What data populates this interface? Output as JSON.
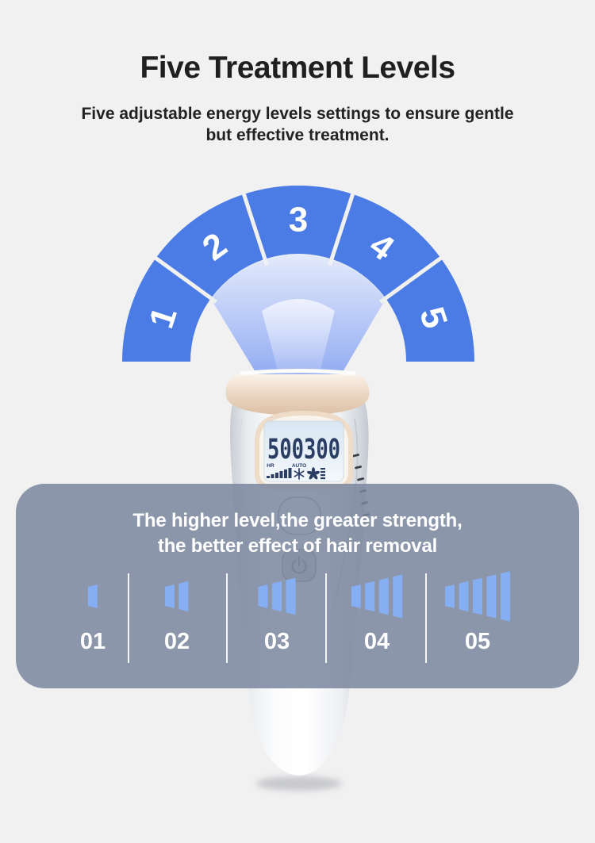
{
  "colors": {
    "background": "#f1f1f2",
    "arc_blue": "#4b7ce6",
    "beam_top": "#e4eafb",
    "beam_bottom": "#92acf1",
    "panel_slate": "rgba(122,134,157,0.85)",
    "bar_blue": "#86aef3",
    "lcd_ink": "#2a3d63",
    "cap_champagne": "#e9d5c1",
    "text_dark": "#1f1f1f",
    "text_white": "#ffffff"
  },
  "header": {
    "title": "Five Treatment Levels",
    "subtitle_line1": "Five adjustable energy levels settings to ensure gentle",
    "subtitle_line2": "but effective treatment."
  },
  "arc": {
    "labels": [
      "1",
      "2",
      "3",
      "4",
      "5"
    ],
    "color": "#4b7ce6"
  },
  "device": {
    "lcd_digits": "500300",
    "lcd_label_hr": "HR",
    "lcd_label_auto": "AUTO"
  },
  "panel": {
    "heading_line1": "The higher level,the greater strength,",
    "heading_line2": "the better effect of hair removal",
    "bar_color": "#86aef3",
    "levels": [
      {
        "label": "01",
        "bars": 1
      },
      {
        "label": "02",
        "bars": 2
      },
      {
        "label": "03",
        "bars": 3
      },
      {
        "label": "04",
        "bars": 4
      },
      {
        "label": "05",
        "bars": 5
      }
    ]
  }
}
